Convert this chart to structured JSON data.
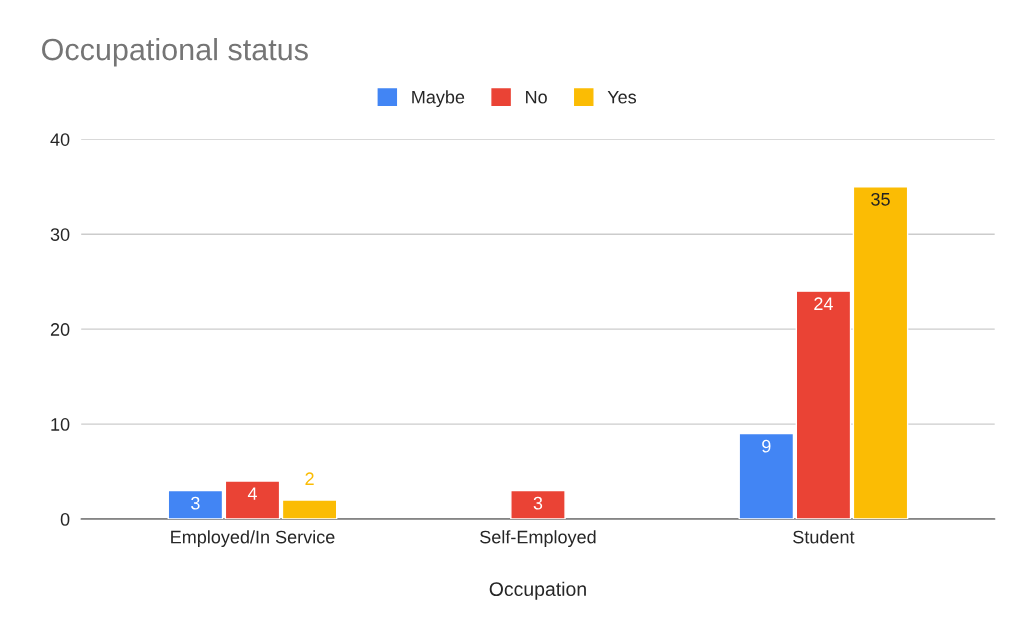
{
  "chart_data": {
    "type": "bar",
    "title": "Occupational status",
    "xlabel": "Occupation",
    "categories": [
      "Employed/In Service",
      "Self-Employed",
      "Student"
    ],
    "series": [
      {
        "name": "Maybe",
        "color": "#4285f4",
        "values": [
          3,
          null,
          9
        ]
      },
      {
        "name": "No",
        "color": "#ea4335",
        "values": [
          4,
          3,
          24
        ]
      },
      {
        "name": "Yes",
        "color": "#fbbc04",
        "values": [
          2,
          null,
          35
        ]
      }
    ],
    "ylim": [
      0,
      40
    ],
    "yticks": [
      0,
      10,
      20,
      30,
      40
    ],
    "grid": "y",
    "legend": "top",
    "data_labels": true
  }
}
